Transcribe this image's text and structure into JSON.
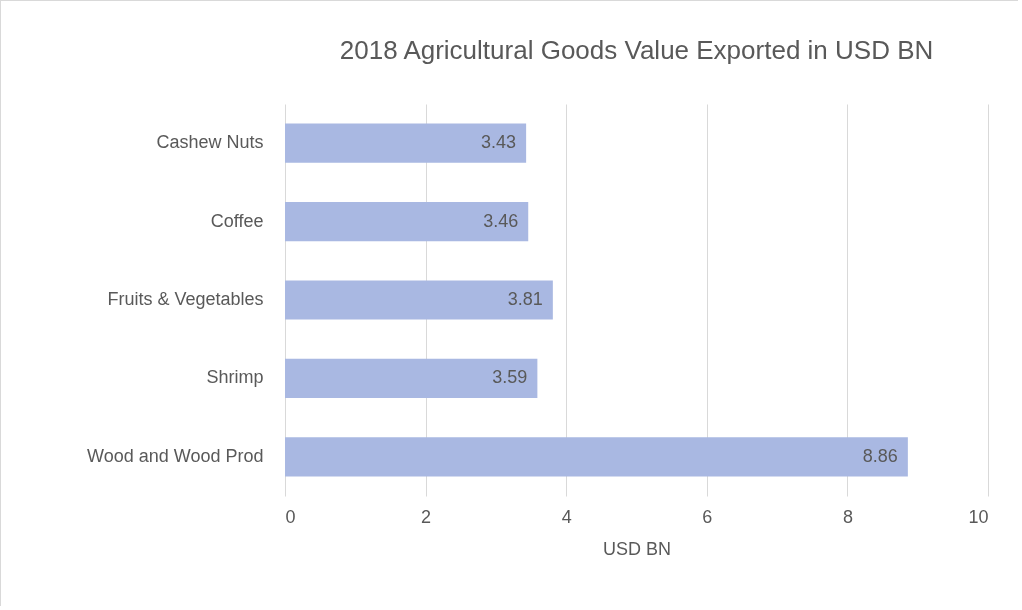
{
  "chart_data": {
    "type": "bar",
    "orientation": "horizontal",
    "title": "2018 Agricultural Goods Value Exported in USD BN",
    "xlabel": "USD BN",
    "categories": [
      "Cashew Nuts",
      "Coffee",
      "Fruits & Vegetables",
      "Shrimp",
      "Wood and Wood Prod"
    ],
    "values": [
      3.43,
      3.46,
      3.81,
      3.59,
      8.86
    ],
    "color": "#a9b8e2",
    "xlim": [
      0,
      10
    ],
    "xticks": [
      0,
      2,
      4,
      6,
      8,
      10
    ],
    "grid": "x",
    "data_labels": true
  }
}
